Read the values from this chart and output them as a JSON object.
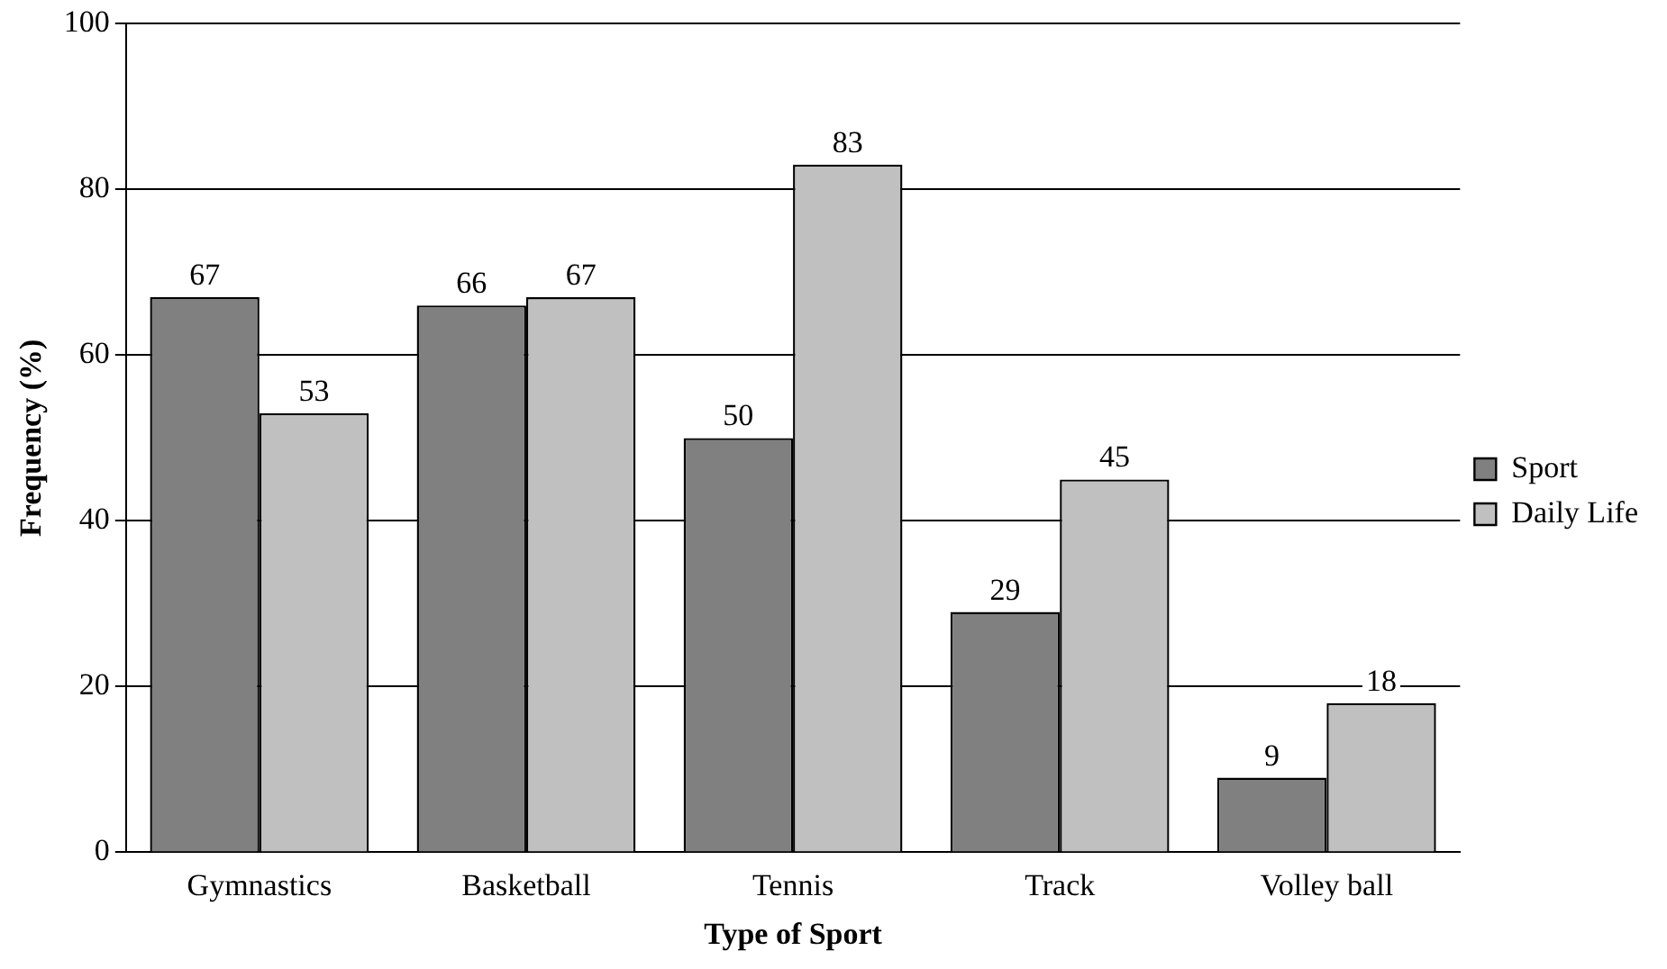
{
  "chart_data": {
    "type": "bar",
    "xlabel": "Type of Sport",
    "ylabel": "Frequency (%)",
    "categories": [
      "Gymnastics",
      "Basketball",
      "Tennis",
      "Track",
      "Volley ball"
    ],
    "series": [
      {
        "name": "Sport",
        "color": "#808080",
        "values": [
          67,
          66,
          50,
          29,
          9
        ]
      },
      {
        "name": "Daily Life",
        "color": "#c0c0c0",
        "values": [
          53,
          67,
          83,
          45,
          18
        ]
      }
    ],
    "ylim": [
      0,
      100
    ],
    "yticks": [
      0,
      20,
      40,
      60,
      80,
      100
    ],
    "grid": "y",
    "legend": "right",
    "data_labels": true
  }
}
